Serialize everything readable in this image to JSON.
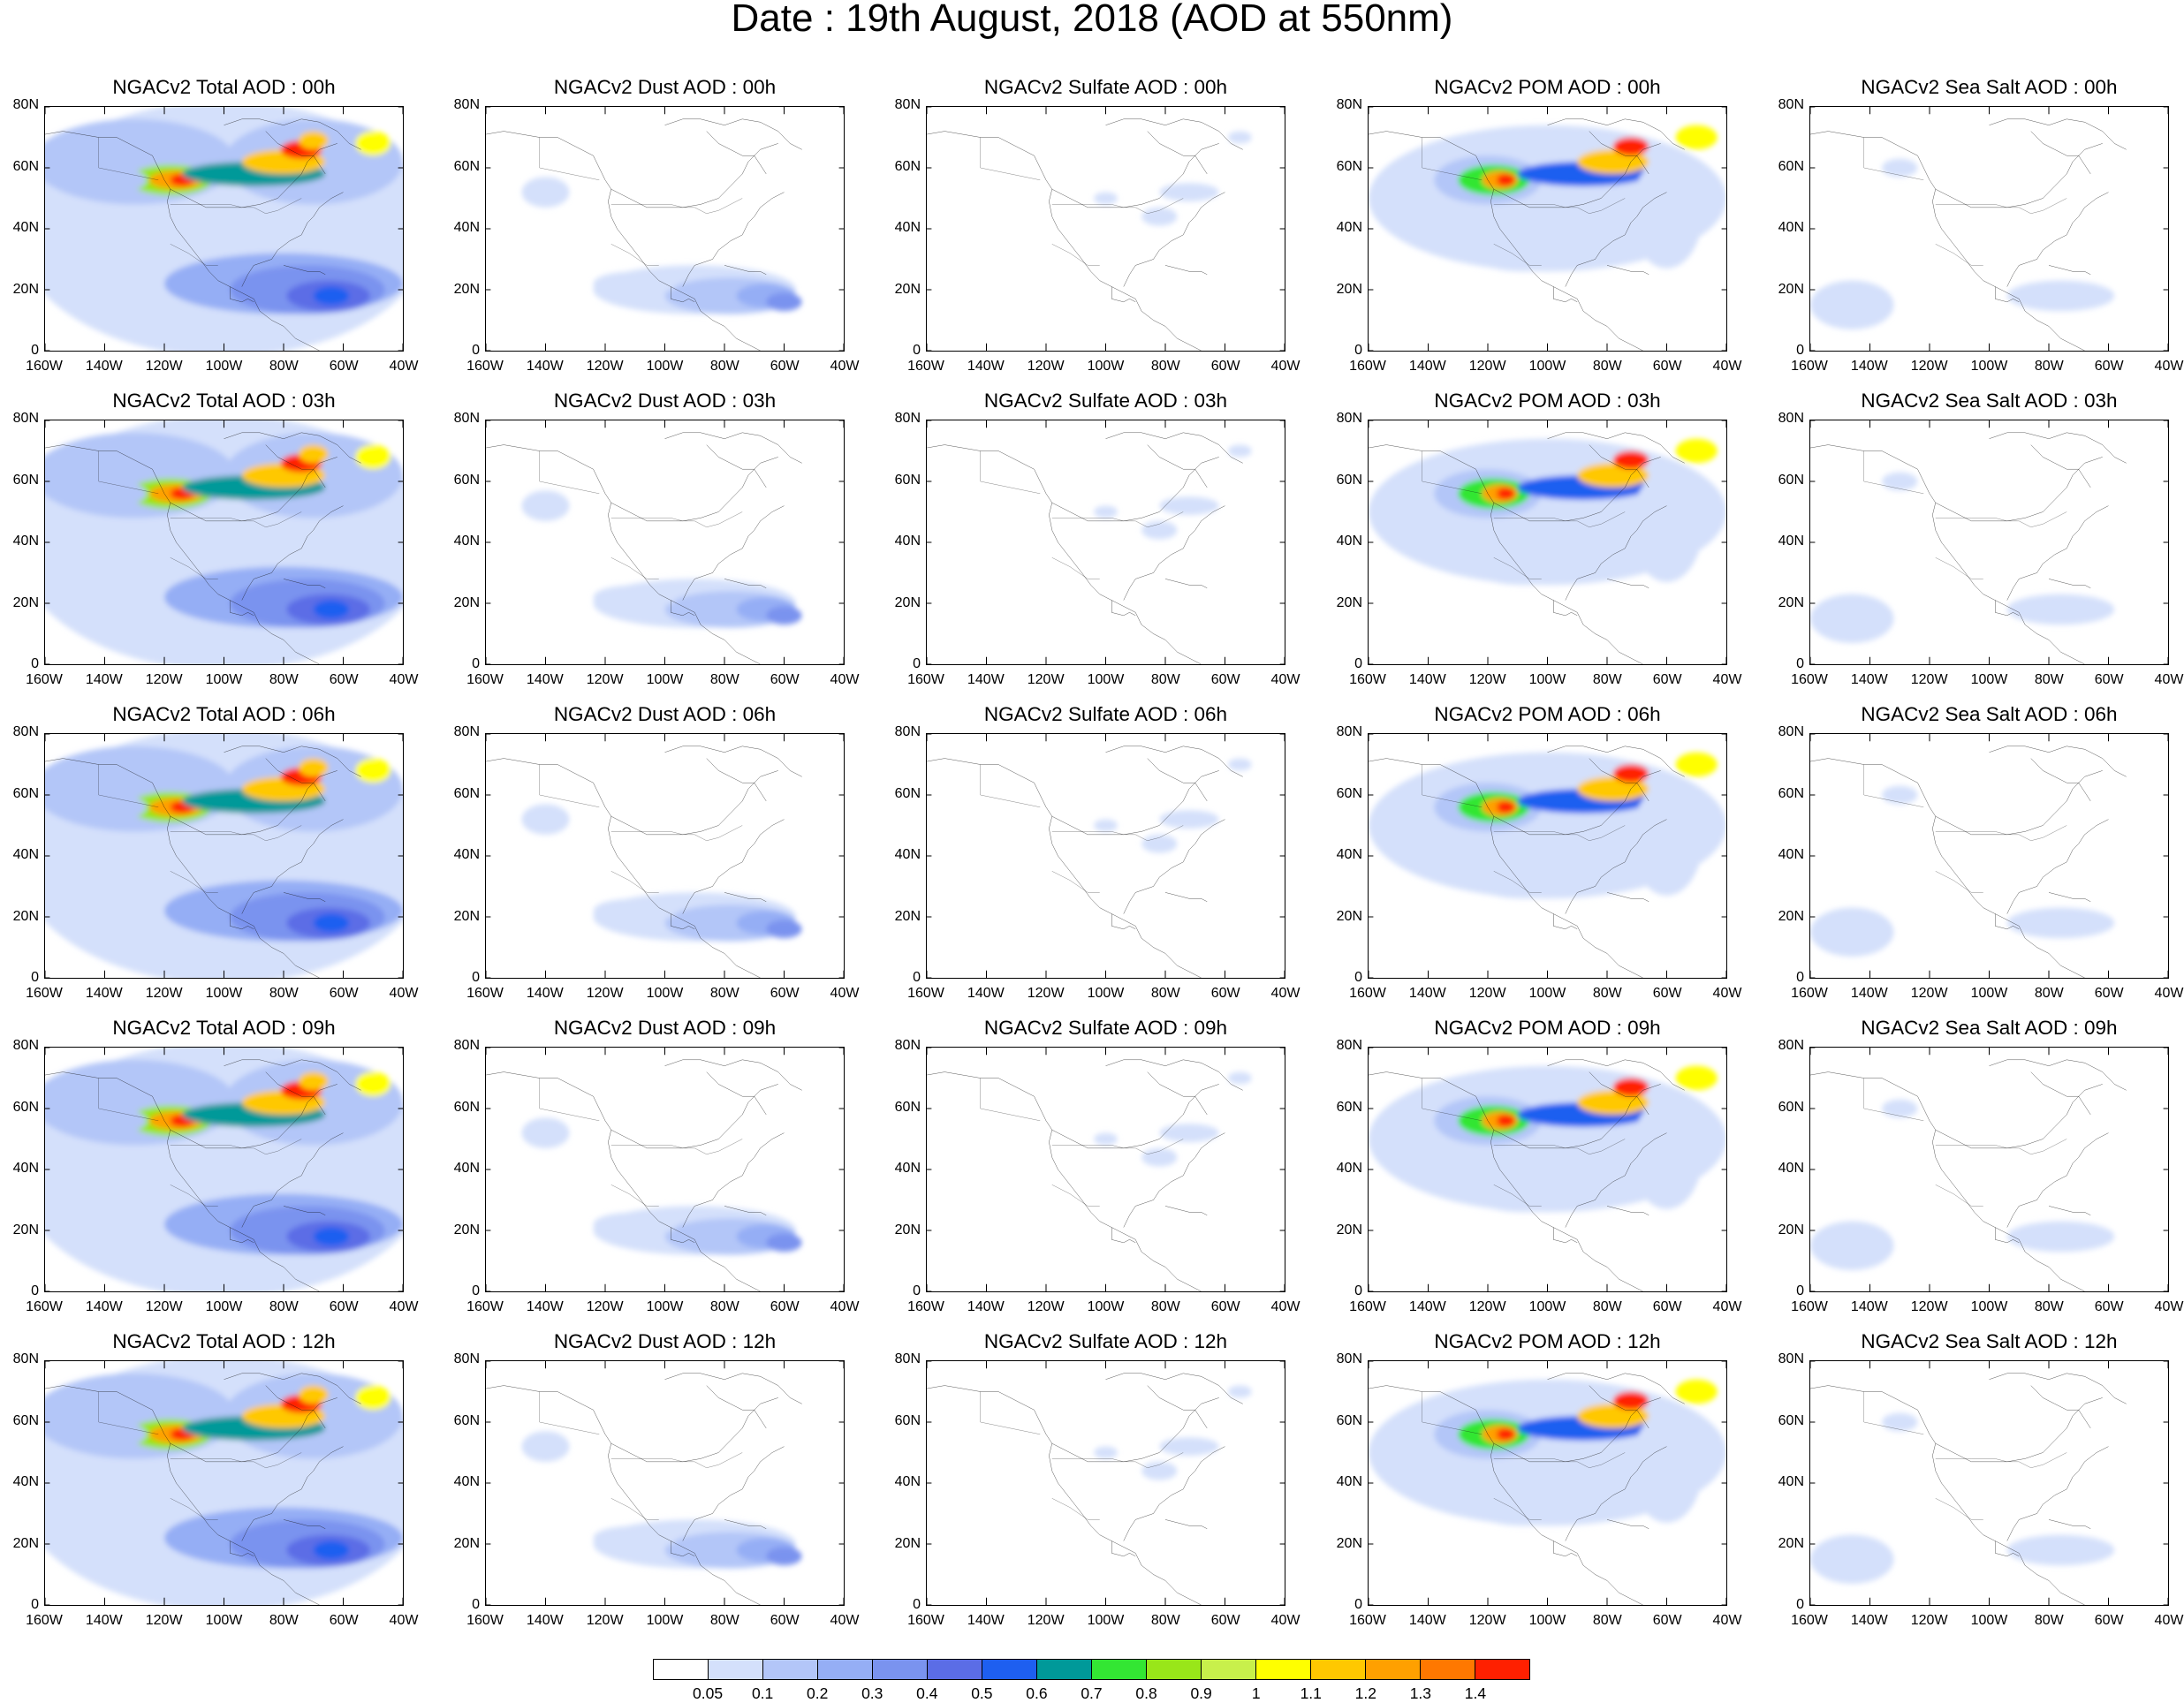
{
  "title": "Date : 19th August, 2018 (AOD at 550nm)",
  "map": {
    "region": "North America",
    "lon_range": [
      "160W",
      "40W"
    ],
    "lat_range": [
      "0",
      "80N"
    ],
    "x_ticks": [
      "160W",
      "140W",
      "120W",
      "100W",
      "80W",
      "60W",
      "40W"
    ],
    "y_ticks": [
      "0",
      "20N",
      "40N",
      "60N",
      "80N"
    ]
  },
  "panels": [
    [
      "NGACv2 Total AOD : 00h",
      "NGACv2 Dust AOD : 00h",
      "NGACv2 Sulfate AOD : 00h",
      "NGACv2 POM AOD : 00h",
      "NGACv2 Sea Salt AOD : 00h"
    ],
    [
      "NGACv2 Total AOD : 03h",
      "NGACv2 Dust AOD : 03h",
      "NGACv2 Sulfate AOD : 03h",
      "NGACv2 POM AOD : 03h",
      "NGACv2 Sea Salt AOD : 03h"
    ],
    [
      "NGACv2 Total AOD : 06h",
      "NGACv2 Dust AOD : 06h",
      "NGACv2 Sulfate AOD : 06h",
      "NGACv2 POM AOD : 06h",
      "NGACv2 Sea Salt AOD : 06h"
    ],
    [
      "NGACv2 Total AOD : 09h",
      "NGACv2 Dust AOD : 09h",
      "NGACv2 Sulfate AOD : 09h",
      "NGACv2 POM AOD : 09h",
      "NGACv2 Sea Salt  AOD : 09h"
    ],
    [
      "NGACv2 Total AOD  : 12h",
      "NGACv2 Dust AOD : 12h",
      "NGACv2 Sulfate AOD : 12h",
      "NGACv2 POM  AOD : 12h",
      "NGACv2 Sea Salt  AOD : 12h"
    ]
  ],
  "colorbar": {
    "colors": [
      "#ffffff",
      "#d4e0fb",
      "#b3c6f8",
      "#95aef5",
      "#7a93ef",
      "#5b6de6",
      "#1e5ff0",
      "#009999",
      "#33e633",
      "#99e619",
      "#c8f04b",
      "#ffff00",
      "#ffc800",
      "#ffa000",
      "#ff7800",
      "#ff2000"
    ],
    "labels": [
      "0.05",
      "0.1",
      "0.2",
      "0.3",
      "0.4",
      "0.5",
      "0.6",
      "0.7",
      "0.8",
      "0.9",
      "1",
      "1.1",
      "1.2",
      "1.3",
      "1.4"
    ]
  }
}
